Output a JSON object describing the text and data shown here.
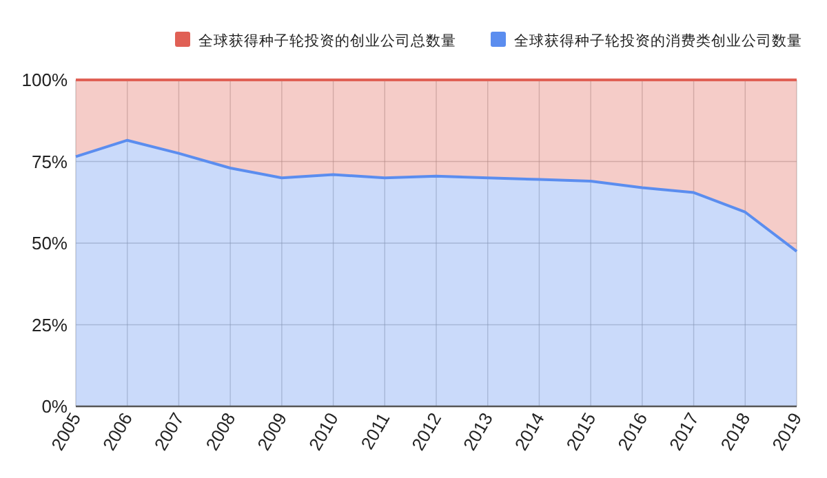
{
  "chart_data": {
    "type": "area",
    "stacked": true,
    "categories": [
      "2005",
      "2006",
      "2007",
      "2008",
      "2009",
      "2010",
      "2011",
      "2012",
      "2013",
      "2014",
      "2015",
      "2016",
      "2017",
      "2018",
      "2019"
    ],
    "series": [
      {
        "name": "全球获得种子轮投资的消费类创业公司数量",
        "color": "#5b8def",
        "values": [
          76.5,
          81.5,
          77.5,
          73,
          70,
          71,
          70,
          70.5,
          70,
          69.5,
          69,
          67,
          65.5,
          59.5,
          47.5
        ]
      },
      {
        "name": "全球获得种子轮投资的创业公司总数量",
        "color": "#e06055",
        "values": [
          23.5,
          18.5,
          22.5,
          27,
          30,
          29,
          30,
          29.5,
          30,
          30.5,
          31,
          33,
          34.5,
          40.5,
          52.5
        ]
      }
    ],
    "ylim": [
      0,
      100
    ],
    "yticks": [
      {
        "value": 0,
        "label": "0%"
      },
      {
        "value": 25,
        "label": "25%"
      },
      {
        "value": 50,
        "label": "50%"
      },
      {
        "value": 75,
        "label": "75%"
      },
      {
        "value": 100,
        "label": "100%"
      }
    ],
    "grid": true,
    "legend": "top",
    "marker": "none"
  }
}
